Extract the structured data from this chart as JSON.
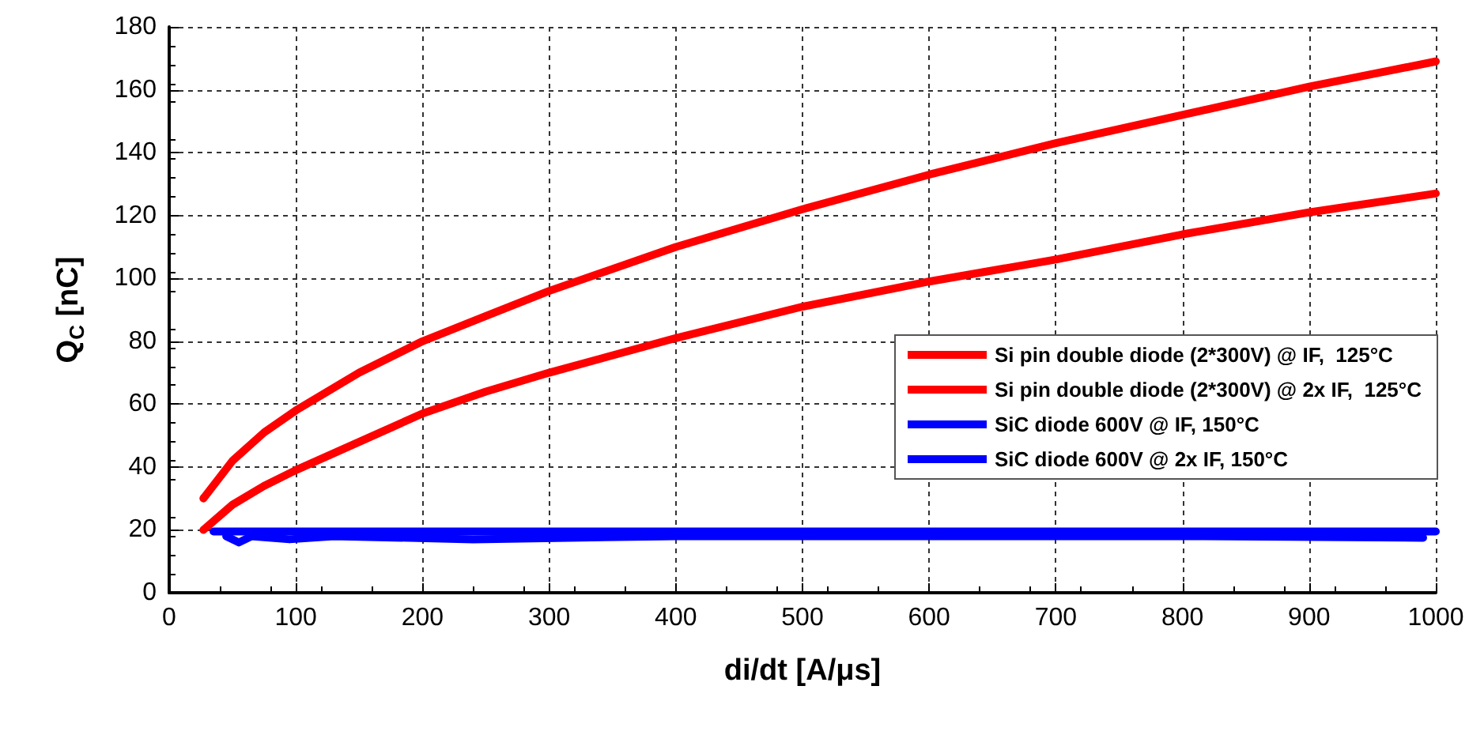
{
  "chart_data": {
    "type": "line",
    "xlabel": "di/dt [A/μs]",
    "ylabel": "Q$_{C}$ [nC]",
    "xlim": [
      0,
      1000
    ],
    "ylim": [
      0,
      180
    ],
    "xticks": [
      0,
      100,
      200,
      300,
      400,
      500,
      600,
      700,
      800,
      900,
      1000
    ],
    "yticks": [
      0,
      20,
      40,
      60,
      80,
      100,
      120,
      140,
      160,
      180
    ],
    "grid": true,
    "legend": "right",
    "marker": "none",
    "line_style": "solid",
    "series": [
      {
        "name": "Si pin double diode (2*300V) @ IF,  125°C",
        "color": "#ff0000",
        "x": [
          27,
          50,
          75,
          100,
          150,
          200,
          250,
          300,
          400,
          500,
          600,
          700,
          800,
          900,
          1000
        ],
        "values": [
          20,
          28,
          34,
          39,
          48,
          57,
          64,
          70,
          81,
          91,
          99,
          106,
          114,
          121,
          127
        ]
      },
      {
        "name": "Si pin double diode (2*300V) @ 2x IF,  125°C",
        "color": "#ff0000",
        "x": [
          27,
          50,
          75,
          100,
          150,
          200,
          250,
          300,
          400,
          500,
          600,
          700,
          800,
          900,
          1000
        ],
        "values": [
          30,
          42,
          51,
          58,
          70,
          80,
          88,
          96,
          110,
          122,
          133,
          143,
          152,
          161,
          169
        ]
      },
      {
        "name": "SiC diode 600V @ IF, 150°C",
        "color": "#0000ff",
        "x": [
          35,
          100,
          200,
          300,
          400,
          500,
          600,
          700,
          800,
          900,
          1000
        ],
        "values": [
          19.5,
          19.5,
          19.5,
          19.5,
          19.5,
          19.5,
          19.5,
          19.5,
          19.5,
          19.5,
          19.5
        ]
      },
      {
        "name": "SiC diode 600V @ 2x IF, 150°C",
        "color": "#0000ff",
        "x": [
          45,
          55,
          65,
          95,
          130,
          240,
          400,
          600,
          800,
          990
        ],
        "values": [
          18,
          16,
          18,
          17,
          18,
          17,
          18,
          18,
          18,
          17.5
        ]
      }
    ]
  }
}
